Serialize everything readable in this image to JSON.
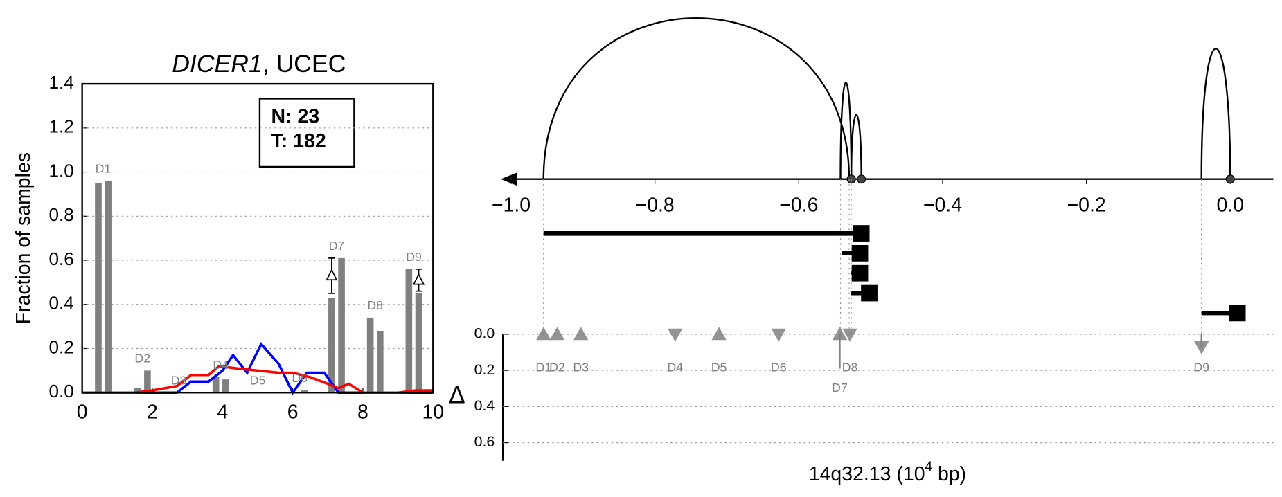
{
  "chart_data": [
    {
      "type": "bar",
      "title_gene": "DICER1",
      "title_rest": ", UCEC",
      "ylabel": "Fraction of samples",
      "xlim": [
        0,
        10
      ],
      "xticks": [
        0,
        2,
        4,
        6,
        8,
        10
      ],
      "ylim": [
        0,
        1.4
      ],
      "yticks": [
        {
          "value": 0,
          "label": "0.0"
        },
        {
          "value": 0.2,
          "label": "0.2"
        },
        {
          "value": 0.4,
          "label": "0.4"
        },
        {
          "value": 0.6,
          "label": "0.6"
        },
        {
          "value": 0.8,
          "label": "0.8"
        },
        {
          "value": 1,
          "label": "1.0"
        },
        {
          "value": 1.2,
          "label": "1.2"
        },
        {
          "value": 1.4,
          "label": "1.4"
        }
      ],
      "grid": true,
      "categories": [
        "D1",
        "D2",
        "D3",
        "D4",
        "D5",
        "D6",
        "D7",
        "D8",
        "D9"
      ],
      "positions": [
        0.6,
        1.72,
        2.75,
        3.95,
        5.0,
        6.2,
        7.25,
        8.35,
        9.45
      ],
      "series": [
        {
          "color": "#808080",
          "values": [
            0.95,
            0.02,
            0.0,
            0.07,
            0.0,
            0.0,
            0.43,
            0.34,
            0.56
          ]
        },
        {
          "color": "#808080",
          "values": [
            0.96,
            0.1,
            0.0,
            0.06,
            0.0,
            0.01,
            0.61,
            0.28,
            0.45
          ]
        }
      ],
      "lines": [
        {
          "color": "#0000ff",
          "x": [
            0,
            1,
            2,
            2.7,
            3.1,
            3.6,
            4.0,
            4.3,
            4.7,
            5.1,
            5.6,
            6.0,
            6.4,
            6.9,
            7.3,
            8,
            9,
            10
          ],
          "values": [
            0,
            0,
            0,
            0,
            0.05,
            0.05,
            0.1,
            0.17,
            0.09,
            0.22,
            0.13,
            0,
            0.09,
            0.09,
            0,
            0,
            0,
            0
          ]
        },
        {
          "color": "#ff0000",
          "x": [
            0,
            1,
            1.5,
            2.0,
            2.7,
            3.1,
            3.6,
            3.9,
            4.4,
            5.0,
            5.6,
            6.0,
            6.5,
            7.0,
            7.3,
            7.6,
            8.0,
            9.0,
            9.5,
            10
          ],
          "values": [
            0,
            0,
            0,
            0.01,
            0.03,
            0.08,
            0.08,
            0.12,
            0.11,
            0.1,
            0.09,
            0.09,
            0.07,
            0.04,
            0.02,
            0.04,
            0,
            0,
            0.01,
            0.01
          ]
        }
      ],
      "deltas": {
        "x": [
          7.11,
          9.59
        ],
        "values": [
          0.53,
          0.51
        ],
        "errors": [
          0.08,
          0.05
        ]
      },
      "box": [
        "N: 23",
        "T: 182"
      ]
    },
    {
      "type": "genome",
      "xlim": [
        -1.01,
        0.06
      ],
      "xticks": [
        {
          "value": -1,
          "label": "−1.0"
        },
        {
          "value": -0.8,
          "label": "−0.8"
        },
        {
          "value": -0.6,
          "label": "−0.6"
        },
        {
          "value": -0.4,
          "label": "−0.4"
        },
        {
          "value": -0.2,
          "label": "−0.2"
        },
        {
          "value": 0,
          "label": "0.0"
        }
      ],
      "arcs": [
        {
          "start": -0.955,
          "end": -0.53,
          "height": 1.0
        },
        {
          "start": -0.542,
          "end": -0.527,
          "height": 0.6
        },
        {
          "start": -0.527,
          "end": -0.513,
          "height": 0.4
        },
        {
          "start": -0.04,
          "end": 0.0,
          "height": 0.81
        }
      ],
      "anchors": [
        -0.527,
        -0.513,
        0.0
      ],
      "segments": [
        {
          "start": -0.955,
          "end": -0.513
        },
        {
          "start": -0.54,
          "end": -0.515
        },
        {
          "start": -0.527,
          "end": -0.515
        },
        {
          "start": -0.527,
          "end": -0.502
        },
        {
          "start": -0.04,
          "end": 0.01
        }
      ],
      "guides": [
        -0.955,
        -0.542,
        -0.53,
        -0.527,
        -0.04
      ],
      "domains": {
        "labels": [
          "D1",
          "D2",
          "D3",
          "D4",
          "D5",
          "D6",
          "D7",
          "D8",
          "D9"
        ],
        "x": [
          -0.955,
          -0.936,
          -0.903,
          -0.772,
          -0.711,
          -0.628,
          -0.543,
          -0.529,
          -0.04
        ],
        "delta": [
          0,
          0,
          0,
          0,
          0,
          0,
          0.19,
          0,
          0.07
        ],
        "direction": [
          "up",
          "up",
          "up",
          "down",
          "up",
          "down",
          "up",
          "down",
          "down"
        ],
        "color": "#808080"
      },
      "ylabel": "Δ",
      "ylim": [
        0,
        0.7
      ],
      "yticks": [
        {
          "value": 0,
          "label": "0.0"
        },
        {
          "value": 0.2,
          "label": "0.2"
        },
        {
          "value": 0.4,
          "label": "0.4"
        },
        {
          "value": 0.6,
          "label": "0.6"
        }
      ],
      "grid": true,
      "xlabel": [
        "14q32.13 (10",
        "4",
        " bp)"
      ]
    }
  ]
}
